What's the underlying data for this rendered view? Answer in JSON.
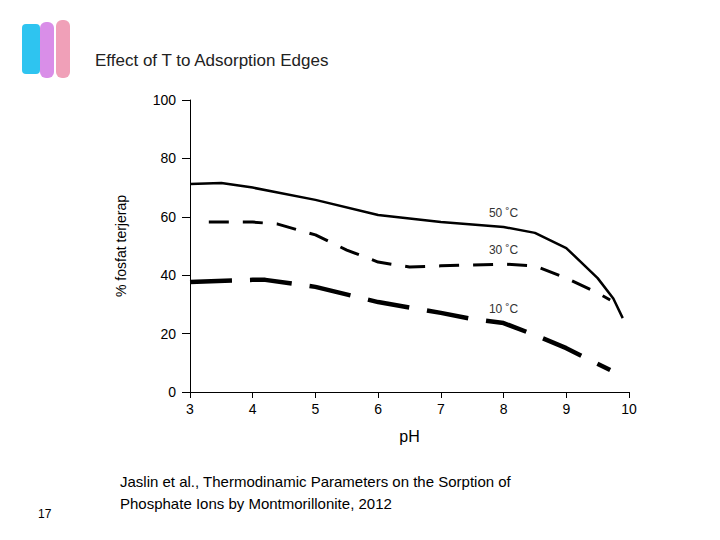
{
  "chart_data": {
    "type": "line",
    "title": "Effect of T to Adsorption Edges",
    "x_label": "pH",
    "y_label": "% fosfat terjerap",
    "xlim": [
      3,
      10
    ],
    "xticks": [
      3,
      4,
      5,
      6,
      7,
      8,
      9,
      10
    ],
    "ylim": [
      0,
      100
    ],
    "yticks": [
      0,
      20,
      40,
      60,
      80,
      100
    ],
    "grid": false,
    "series": [
      {
        "name": "50 ˚C",
        "color": "#000000",
        "line_style": "solid",
        "x": [
          3,
          3.5,
          4,
          5,
          6,
          7,
          8,
          8.5,
          9,
          9.5,
          9.75,
          9.9
        ],
        "values": [
          71.2,
          71.6,
          70,
          65.8,
          60.6,
          58.2,
          56.5,
          54.5,
          49.3,
          39,
          32,
          25.3
        ]
      },
      {
        "name": "30 ˚C",
        "color": "#000000",
        "line_style": "dashed",
        "x": [
          3.3,
          4,
          4.4,
          5,
          5.5,
          6,
          6.5,
          7,
          8,
          8.5,
          9,
          9.5,
          9.7
        ],
        "values": [
          58.2,
          58.2,
          57.5,
          53.8,
          48.6,
          44.5,
          42.8,
          43.2,
          43.8,
          43.2,
          39,
          33.9,
          31.5
        ]
      },
      {
        "name": "10 ˚C",
        "color": "#000000",
        "line_style": "longdash",
        "x": [
          3,
          4,
          4.2,
          5,
          6,
          7,
          7.5,
          8,
          8.5,
          9,
          9.7
        ],
        "values": [
          37.7,
          38.4,
          38.4,
          36,
          30.8,
          27.1,
          25,
          23.6,
          19.5,
          15,
          7.5
        ]
      }
    ],
    "annotations": [
      "Jaslin et al., Thermodinamic Parameters on the Sorption of Phosphate Ions by Montmorillonite, 2012",
      "17"
    ]
  }
}
